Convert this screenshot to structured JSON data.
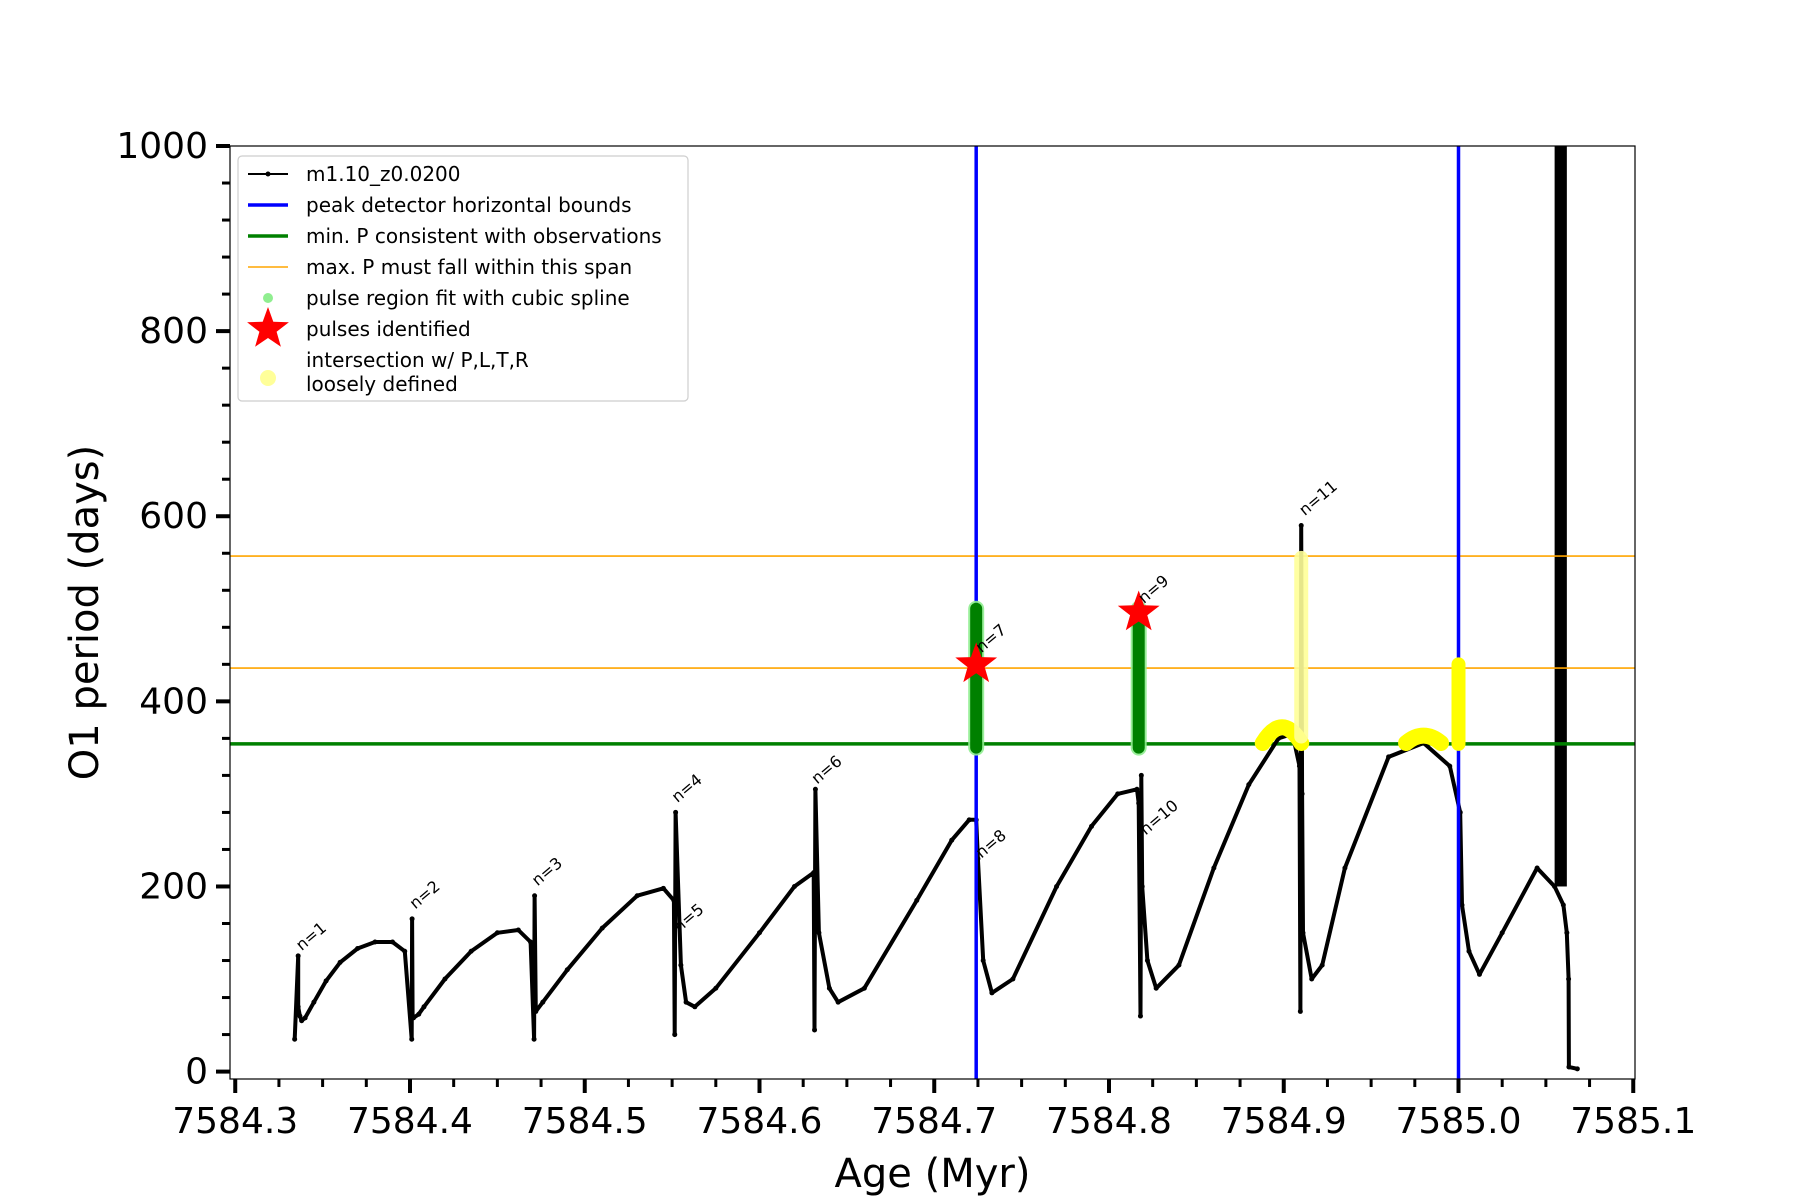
{
  "chart_data": {
    "type": "line",
    "xlabel": "Age (Myr)",
    "ylabel": "O1 period (days)",
    "xlim": [
      7584.297,
      7585.101
    ],
    "ylim": [
      -8,
      1000
    ],
    "x_ticks": [
      7584.3,
      7584.4,
      7584.5,
      7584.6,
      7584.7,
      7584.8,
      7584.9,
      7585.0,
      7585.1
    ],
    "x_tick_labels": [
      "7584.3",
      "7584.4",
      "7584.5",
      "7584.6",
      "7584.7",
      "7584.8",
      "7584.9",
      "7585.0",
      "7585.1"
    ],
    "y_ticks": [
      0,
      200,
      400,
      600,
      800,
      1000
    ],
    "y_tick_labels": [
      "0",
      "200",
      "400",
      "600",
      "800",
      "1000"
    ],
    "grid": false,
    "legend_position": "top-left",
    "legend": [
      {
        "label": "m1.10_z0.0200",
        "style": "line-dot",
        "color": "#000000"
      },
      {
        "label": "peak detector horizontal bounds",
        "style": "line",
        "color": "#0000ff"
      },
      {
        "label": "min. P consistent with observations",
        "style": "line",
        "color": "#008000"
      },
      {
        "label": "max. P must fall within this span",
        "style": "thin-line",
        "color": "#ffa500"
      },
      {
        "label": "pulse region fit with cubic spline",
        "style": "dot",
        "color": "#90ee90"
      },
      {
        "label": "pulses identified",
        "style": "star",
        "color": "#ff0000"
      },
      {
        "label": "intersection w/ P,L,T,R\nloosely defined",
        "style": "dot",
        "color": "#ffff99"
      }
    ],
    "vertical_lines": [
      {
        "x": 7584.724,
        "color": "#0000ff"
      },
      {
        "x": 7585.0,
        "color": "#0000ff"
      }
    ],
    "horizontal_lines": [
      {
        "y": 354,
        "color": "#008000"
      },
      {
        "y": 557,
        "color": "#ffa500"
      },
      {
        "y": 436,
        "color": "#ffa500"
      }
    ],
    "series": [
      {
        "name": "m1.10_z0.0200",
        "color": "#000000",
        "x": [
          7584.334,
          7584.336,
          7584.336,
          7584.337,
          7584.338,
          7584.34,
          7584.345,
          7584.352,
          7584.36,
          7584.37,
          7584.38,
          7584.39,
          7584.397,
          7584.401,
          7584.4012,
          7584.4015,
          7584.402,
          7584.405,
          7584.408,
          7584.42,
          7584.435,
          7584.45,
          7584.462,
          7584.469,
          7584.471,
          7584.4713,
          7584.472,
          7584.476,
          7584.49,
          7584.51,
          7584.53,
          7584.545,
          7584.551,
          7584.5515,
          7584.552,
          7584.555,
          7584.558,
          7584.563,
          7584.575,
          7584.6,
          7584.62,
          7584.631,
          7584.6315,
          7584.632,
          7584.634,
          7584.64,
          7584.645,
          7584.66,
          7584.69,
          7584.71,
          7584.72,
          7584.724,
          7584.725,
          7584.728,
          7584.733,
          7584.745,
          7584.77,
          7584.79,
          7584.805,
          7584.816,
          7584.817,
          7584.818,
          7584.8185,
          7584.819,
          7584.822,
          7584.827,
          7584.84,
          7584.86,
          7584.88,
          7584.897,
          7584.905,
          7584.909,
          7584.9095,
          7584.91,
          7584.9105,
          7584.911,
          7584.916,
          7584.922,
          7584.935,
          7584.96,
          7584.98,
          7584.995,
          7585.001,
          7585.002,
          7585.006,
          7585.012,
          7585.025,
          7585.045,
          7585.055,
          7585.06,
          7585.062,
          7585.063,
          7585.0632,
          7585.068
        ],
        "y": [
          35,
          125,
          70,
          60,
          55,
          58,
          75,
          98,
          118,
          133,
          140,
          140,
          130,
          35,
          165,
          60,
          58,
          62,
          70,
          100,
          130,
          150,
          153,
          140,
          35,
          190,
          65,
          75,
          110,
          155,
          190,
          198,
          185,
          40,
          280,
          115,
          75,
          70,
          90,
          150,
          200,
          215,
          45,
          305,
          150,
          90,
          75,
          90,
          185,
          250,
          272,
          272,
          230,
          120,
          85,
          100,
          200,
          265,
          300,
          305,
          290,
          60,
          320,
          200,
          120,
          90,
          115,
          220,
          310,
          360,
          365,
          330,
          65,
          590,
          300,
          150,
          100,
          115,
          220,
          340,
          355,
          330,
          280,
          180,
          130,
          105,
          150,
          220,
          200,
          180,
          150,
          100,
          5,
          3
        ]
      },
      {
        "name": "pulse region fit with cubic spline",
        "color": "#008000",
        "points": [
          [
            7584.724,
            350
          ],
          [
            7584.724,
            500
          ],
          [
            7584.817,
            350
          ],
          [
            7584.817,
            500
          ]
        ]
      },
      {
        "name": "pulses identified",
        "color": "#ff0000",
        "points": [
          [
            7584.724,
            440
          ],
          [
            7584.817,
            496
          ]
        ]
      },
      {
        "name": "intersection w/ P,L,T,R loosely defined",
        "color": "#ffff00",
        "arcs": [
          {
            "x0": 7584.888,
            "x1": 7584.91,
            "ypeak": 372,
            "ybase": 355
          },
          {
            "x0": 7584.97,
            "x1": 7584.99,
            "ypeak": 363,
            "ybase": 355
          }
        ],
        "bands": [
          {
            "x": 7584.91,
            "y0": 362,
            "y1": 555
          },
          {
            "x": 7585.0,
            "y0": 354,
            "y1": 440
          }
        ]
      }
    ],
    "dense_band": {
      "x0": 7585.055,
      "x1": 7585.062,
      "y0": 200,
      "y1": 1000,
      "color": "#000000"
    },
    "annotations": [
      {
        "text": "n=1",
        "x": 7584.338,
        "y": 130
      },
      {
        "text": "n=2",
        "x": 7584.403,
        "y": 175
      },
      {
        "text": "n=3",
        "x": 7584.473,
        "y": 200
      },
      {
        "text": "n=4",
        "x": 7584.553,
        "y": 290
      },
      {
        "text": "n=5",
        "x": 7584.554,
        "y": 150
      },
      {
        "text": "n=6",
        "x": 7584.633,
        "y": 310
      },
      {
        "text": "n=7",
        "x": 7584.727,
        "y": 452
      },
      {
        "text": "n=8",
        "x": 7584.727,
        "y": 230
      },
      {
        "text": "n=9",
        "x": 7584.82,
        "y": 505
      },
      {
        "text": "n=10",
        "x": 7584.821,
        "y": 255
      },
      {
        "text": "n=11",
        "x": 7584.912,
        "y": 600
      }
    ]
  }
}
